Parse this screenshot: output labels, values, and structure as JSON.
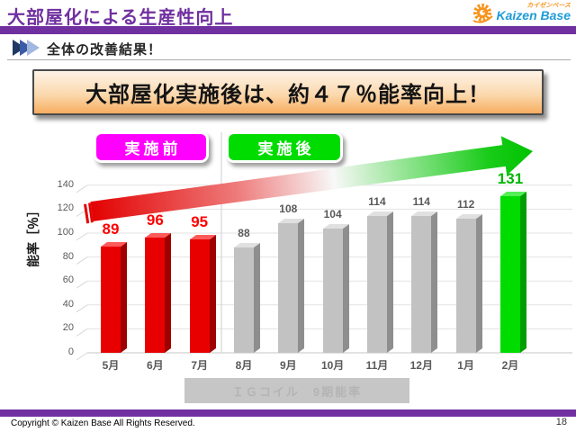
{
  "header": {
    "title": "大部屋化による生産性向上"
  },
  "logo": {
    "jp": "カイゼンベース",
    "en": "Kaizen Base"
  },
  "section": {
    "label": "全体の改善結果！"
  },
  "banner": {
    "text": "大部屋化実施後は、約４７％能率向上！"
  },
  "legend": [
    {
      "id": "before",
      "label": "実施前",
      "color": "#FF00FF"
    },
    {
      "id": "after",
      "label": "実施後",
      "color": "#00DC00"
    }
  ],
  "chart_data": {
    "type": "bar",
    "title": "ＩＧコイル　9期能率",
    "ylabel": "能率［％］",
    "categories": [
      "5月",
      "6月",
      "7月",
      "8月",
      "9月",
      "10月",
      "11月",
      "12月",
      "1月",
      "2月"
    ],
    "values": [
      89,
      96,
      95,
      88,
      108,
      104,
      114,
      114,
      112,
      131
    ],
    "series_group": [
      "before",
      "before",
      "before",
      "neutral",
      "neutral",
      "neutral",
      "neutral",
      "neutral",
      "neutral",
      "after"
    ],
    "yticks": [
      0,
      20,
      40,
      60,
      80,
      100,
      120,
      140
    ],
    "ylim": [
      0,
      140
    ],
    "grid": true,
    "legend_position": "top",
    "annotation_arrow": "red-to-green rising trend arrow"
  },
  "footer": {
    "copyright": "Copyright ©  Kaizen Base  All Rights Reserved.",
    "page": "18"
  },
  "colors": {
    "accent_purple": "#7030A0",
    "banner_top": "#FEF3E7",
    "banner_bottom": "#F7AD60",
    "grid_line": "#E2E2E2",
    "axis_text": "#595959",
    "bars": {
      "before": {
        "front": "#E80000",
        "side": "#9E0000",
        "top": "#FF5A5A",
        "label": "#FF0000"
      },
      "neutral": {
        "front": "#C2C2C2",
        "side": "#8E8E8E",
        "top": "#E0E0E0",
        "label": "#595959"
      },
      "after": {
        "front": "#00DC00",
        "side": "#009E00",
        "top": "#55EE55",
        "label": "#00B400"
      }
    },
    "arrow_start": "#E30000",
    "arrow_end": "#00C200"
  }
}
